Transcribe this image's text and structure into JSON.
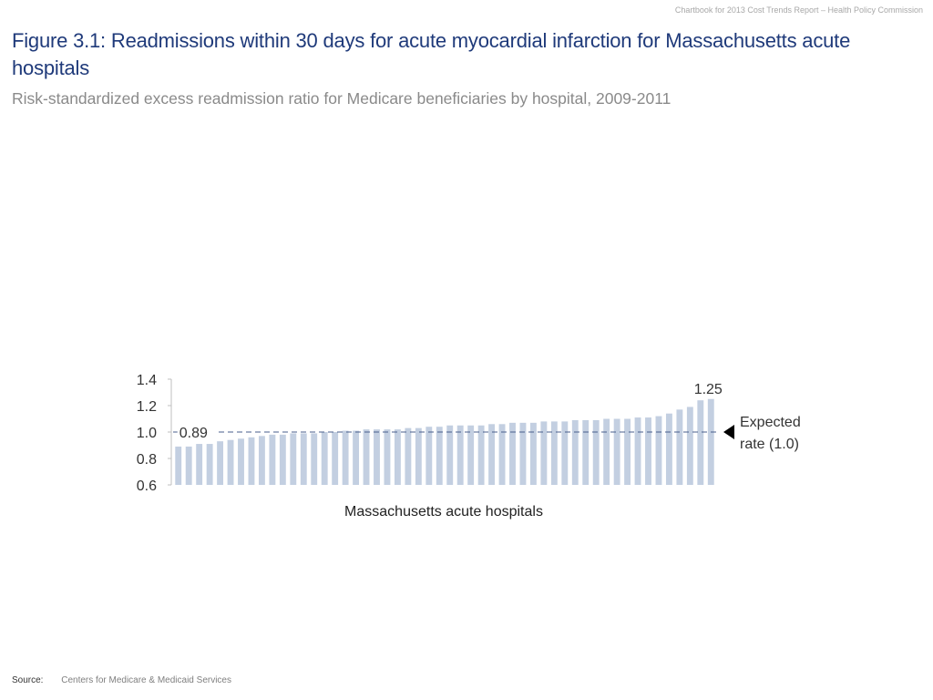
{
  "header_note": "Chartbook for 2013 Cost Trends Report – Health Policy Commission",
  "title": "Figure 3.1: Readmissions within 30 days for acute myocardial infarction for Massachusetts acute hospitals",
  "subtitle": "Risk-standardized excess readmission ratio for Medicare beneficiaries by hospital, 2009-2011",
  "footer": {
    "source_label": "Source:",
    "source_text": "Centers for Medicare & Medicaid Services"
  },
  "colors": {
    "bar": "#c3cfe1",
    "title": "#1f3a7a",
    "reference_line": "#4a5f8c"
  },
  "chart_data": {
    "type": "bar",
    "xlabel": "Massachusetts acute hospitals",
    "ylabel": "",
    "ylim": [
      0.6,
      1.4
    ],
    "yticks": [
      "0.6",
      "0.8",
      "1.0",
      "1.2",
      "1.4"
    ],
    "values": [
      0.89,
      0.89,
      0.91,
      0.91,
      0.93,
      0.94,
      0.95,
      0.96,
      0.97,
      0.98,
      0.98,
      0.99,
      0.99,
      0.99,
      1.0,
      1.0,
      1.01,
      1.01,
      1.02,
      1.02,
      1.02,
      1.02,
      1.03,
      1.03,
      1.04,
      1.04,
      1.05,
      1.05,
      1.05,
      1.05,
      1.06,
      1.06,
      1.07,
      1.07,
      1.07,
      1.08,
      1.08,
      1.08,
      1.09,
      1.09,
      1.09,
      1.1,
      1.1,
      1.1,
      1.11,
      1.11,
      1.12,
      1.14,
      1.17,
      1.19,
      1.24,
      1.25
    ],
    "data_labels": [
      {
        "index": 0,
        "text": "0.89"
      },
      {
        "index": 51,
        "text": "1.25"
      }
    ],
    "reference_line": {
      "value": 1.0,
      "label_lines": [
        "Expected",
        "rate (1.0)"
      ]
    },
    "grid": false,
    "legend": "none"
  }
}
